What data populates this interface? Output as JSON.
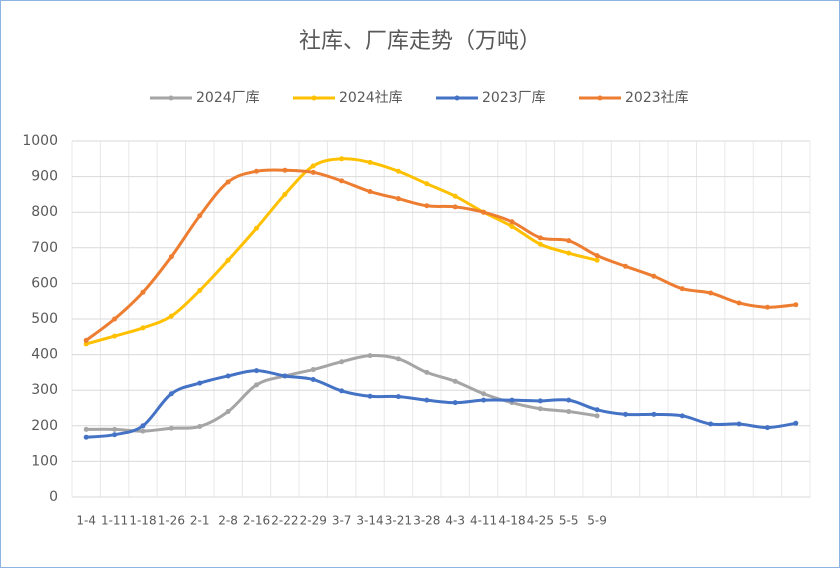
{
  "chart_data": {
    "type": "line",
    "title": "社库、厂库走势（万吨）",
    "categories": [
      "1-4",
      "1-11",
      "1-18",
      "1-26",
      "2-1",
      "2-8",
      "2-16",
      "2-22",
      "2-29",
      "3-7",
      "3-14",
      "3-21",
      "3-28",
      "4-3",
      "4-11",
      "4-18",
      "4-25",
      "5-5",
      "5-9",
      null,
      null,
      null,
      null,
      null,
      null,
      null
    ],
    "series": [
      {
        "name": "2024厂库",
        "color": "#a5a5a5",
        "values": [
          190,
          190,
          185,
          193,
          198,
          240,
          315,
          340,
          358,
          380,
          397,
          388,
          350,
          325,
          290,
          265,
          248,
          240,
          228,
          null,
          null,
          null,
          null,
          null,
          null,
          null
        ]
      },
      {
        "name": "2024社库",
        "color": "#ffc000",
        "values": [
          430,
          452,
          475,
          508,
          580,
          665,
          755,
          850,
          930,
          950,
          940,
          915,
          880,
          845,
          800,
          760,
          710,
          685,
          665,
          null,
          null,
          null,
          null,
          null,
          null,
          null
        ]
      },
      {
        "name": "2023厂库",
        "color": "#4472c4",
        "values": [
          168,
          175,
          200,
          290,
          320,
          340,
          355,
          340,
          330,
          298,
          283,
          282,
          272,
          265,
          272,
          272,
          270,
          272,
          245,
          232,
          232,
          228,
          205,
          205,
          195,
          207
        ]
      },
      {
        "name": "2023社库",
        "color": "#ed7d31",
        "values": [
          440,
          500,
          575,
          675,
          790,
          885,
          915,
          918,
          912,
          888,
          858,
          838,
          818,
          815,
          800,
          773,
          728,
          720,
          678,
          648,
          620,
          585,
          573,
          545,
          533,
          540
        ]
      }
    ],
    "ylim": [
      0,
      1000
    ],
    "yticks": [
      0,
      100,
      200,
      300,
      400,
      500,
      600,
      700,
      800,
      900,
      1000
    ],
    "grid": true,
    "legend": "top"
  }
}
